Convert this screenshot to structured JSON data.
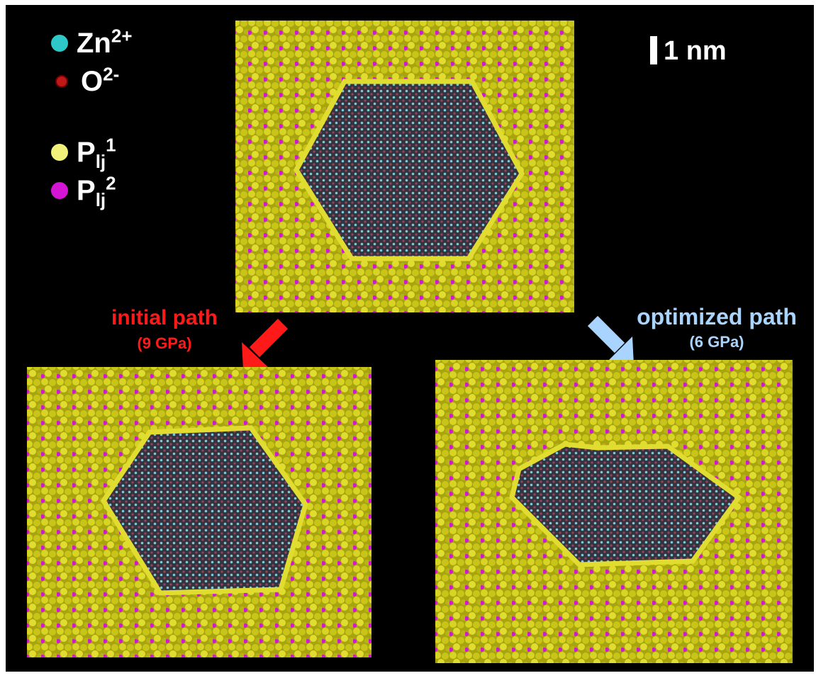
{
  "legend": {
    "items": [
      {
        "name": "Zn",
        "sup": "2+",
        "sub": "",
        "color": "#2ec8c8"
      },
      {
        "name": "O",
        "sup": "2-",
        "sub": "",
        "color": "#c01818"
      },
      {
        "name": "P",
        "sup": "1",
        "sub": "lj",
        "color": "#f2f27a"
      },
      {
        "name": "P",
        "sup": "2",
        "sub": "lj",
        "color": "#d416d4"
      }
    ]
  },
  "scale_bar": {
    "label": "1 nm"
  },
  "paths": {
    "initial": {
      "title": "initial path",
      "pressure": "(9 GPa)",
      "color": "#ff1a1a"
    },
    "optimized": {
      "title": "optimized path",
      "pressure": "(6 GPa)",
      "color": "#a8d4ff"
    }
  },
  "colors": {
    "background": "#000000",
    "ligand_primary": "#c9c418",
    "ligand_secondary": "#d416d4",
    "crystal_core": "#3a3a4a",
    "crystal_zn": "#7fc8d8",
    "crystal_o": "#9a4060"
  }
}
